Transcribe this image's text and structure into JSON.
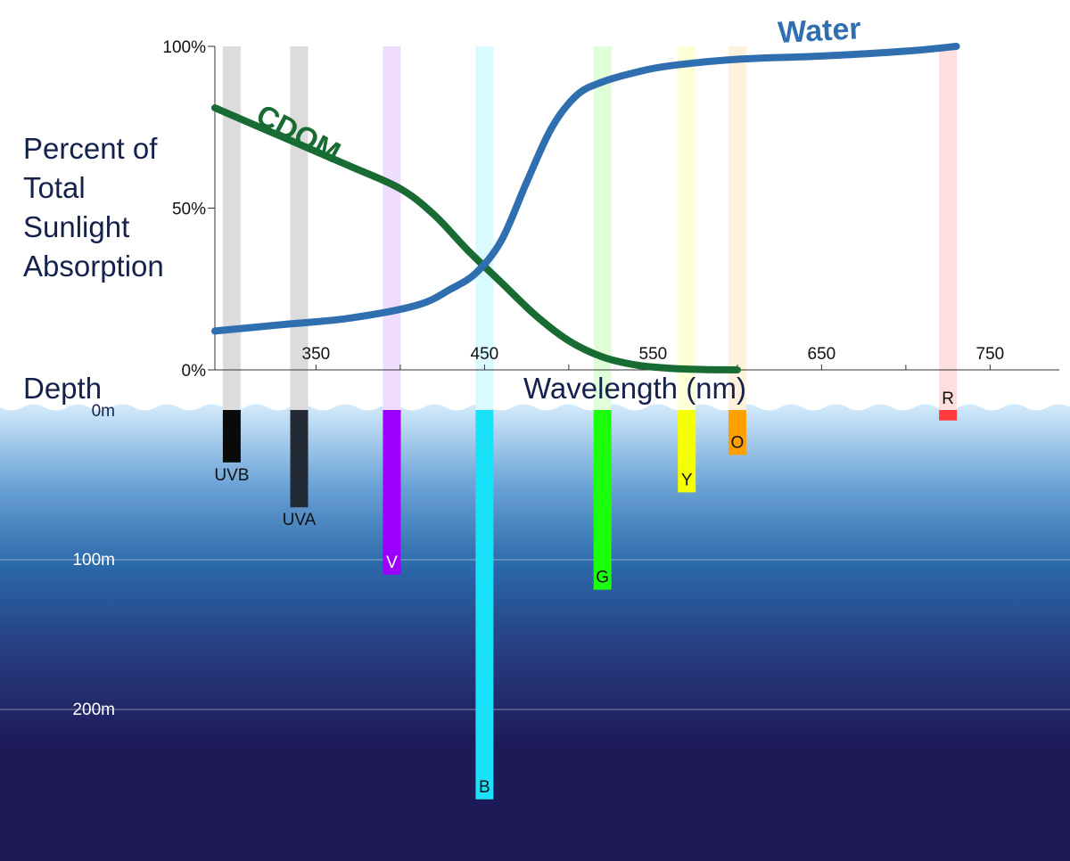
{
  "chart_data": [
    {
      "type": "line",
      "ylabel": "Percent of Total Sunlight Absorption",
      "xlabel": "Wavelength (nm)",
      "x_ticks": [
        "350",
        "450",
        "550",
        "650",
        "750"
      ],
      "y_ticks": [
        "0%",
        "50%",
        "100%"
      ],
      "xlim": [
        290,
        800
      ],
      "ylim": [
        0,
        100
      ],
      "series": [
        {
          "name": "Water",
          "color": "#2f6fb0",
          "x": [
            290,
            330,
            370,
            410,
            430,
            445,
            460,
            475,
            490,
            505,
            520,
            540,
            560,
            600,
            650,
            700,
            730
          ],
          "y": [
            12,
            14,
            16,
            20,
            25,
            30,
            40,
            58,
            75,
            85,
            89,
            92,
            94,
            96,
            97,
            98.5,
            100
          ]
        },
        {
          "name": "CDOM",
          "color": "#196b34",
          "x": [
            290,
            330,
            370,
            400,
            420,
            440,
            460,
            480,
            500,
            520,
            540,
            560,
            580,
            600
          ],
          "y": [
            81,
            72,
            63,
            56,
            48,
            37,
            27,
            17,
            9,
            4,
            1.5,
            0.5,
            0.1,
            0
          ]
        }
      ]
    },
    {
      "type": "bar",
      "ylabel": "Depth",
      "y_ticks": [
        "0m",
        "100m",
        "200m"
      ],
      "ylim": [
        0,
        275
      ],
      "bands": [
        {
          "label": "UVB",
          "nm": 300,
          "depth": 35,
          "color": "#0a0a0a",
          "label_color": "#111111"
        },
        {
          "label": "UVA",
          "nm": 340,
          "depth": 65,
          "color": "#222a35",
          "label_color": "#111111"
        },
        {
          "label": "V",
          "nm": 395,
          "depth": 110,
          "color": "#9b00ff",
          "label_color": "#ffffff"
        },
        {
          "label": "B",
          "nm": 450,
          "depth": 260,
          "color": "#19e1f7",
          "label_color": "#111111"
        },
        {
          "label": "G",
          "nm": 520,
          "depth": 120,
          "color": "#1cff0c",
          "label_color": "#111111"
        },
        {
          "label": "Y",
          "nm": 570,
          "depth": 55,
          "color": "#f5ff00",
          "label_color": "#111111"
        },
        {
          "label": "O",
          "nm": 600,
          "depth": 30,
          "color": "#ff9f00",
          "label_color": "#111111"
        },
        {
          "label": "R",
          "nm": 725,
          "depth": 7,
          "color": "#ff3b3b",
          "label_color": "#111111"
        }
      ]
    }
  ],
  "band_tint_colors": {
    "UVB": "#dcdcdc",
    "UVA": "#dcdcdc",
    "V": "#efdcff",
    "B": "#d9fbff",
    "G": "#e0ffd8",
    "Y": "#fdffd6",
    "O": "#fff1dc",
    "R": "#ffdede"
  },
  "ocean_colors": [
    "#d4ebfc",
    "#6aa2d6",
    "#2a67a8",
    "#263b7e",
    "#1e1a58",
    "#1e1a58"
  ]
}
